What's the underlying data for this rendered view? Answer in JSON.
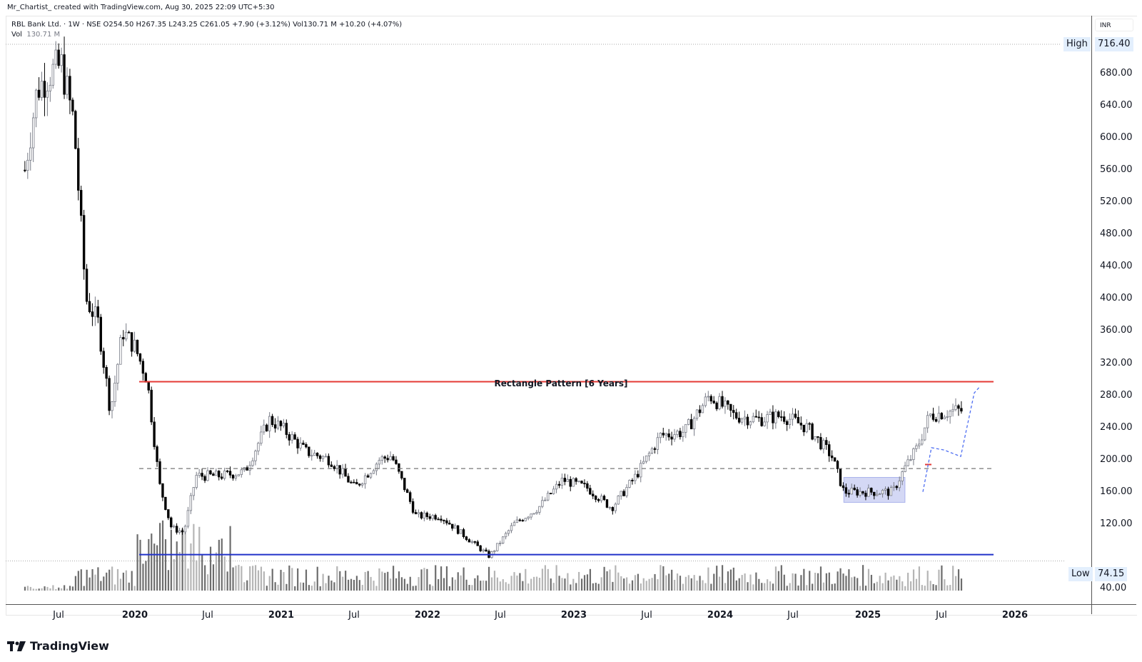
{
  "attribution": "Mr_Chartist_ created with TradingView.com, Aug 30, 2025 22:09 UTC+5:30",
  "legend": {
    "line1": "RBL Bank Ltd. · 1W · NSE  O254.50  H267.35  L243.25  C261.05  +7.90 (+3.12%)  Vol130.71 M  +10.20 (+4.07%)",
    "vol_label": "Vol",
    "vol_value": "130.71 M"
  },
  "price_axis": {
    "currency": "INR",
    "high_label": "High",
    "high_value": "716.40",
    "low_label": "Low",
    "low_value": "74.15"
  },
  "branding": {
    "logo_text": "TradingView"
  },
  "colors": {
    "up_candle": "#787b86",
    "down_candle": "#000000",
    "resistance_line": "#e53935",
    "support_line": "#2132c9",
    "breakout_dashed": "#777777",
    "base_box": "#c5cbf2",
    "projection": "#4e6ef2"
  },
  "chart_data": {
    "type": "candlestick",
    "title": "RBL Bank Ltd. · 1W · NSE",
    "xlabel": "",
    "ylabel": "INR",
    "ylim": [
      40,
      716.4
    ],
    "grid": false,
    "y_ticks": [
      680,
      640,
      600,
      560,
      520,
      480,
      440,
      400,
      360,
      320,
      280,
      240,
      200,
      160,
      120,
      80,
      40
    ],
    "x_ticks": [
      "Jul",
      "2020",
      "Jul",
      "2021",
      "Jul",
      "2022",
      "Jul",
      "2023",
      "Jul",
      "2024",
      "Jul",
      "2025",
      "Jul",
      "2026"
    ],
    "last_bar": {
      "open": 254.5,
      "high": 267.35,
      "low": 243.25,
      "close": 261.05,
      "change": 7.9,
      "change_pct": 3.12,
      "volume": "130.71M",
      "volume_change": "+10.20 (+4.07%)"
    },
    "extremes": {
      "high": 716.4,
      "low": 74.15
    },
    "annotations": [
      {
        "type": "hline",
        "label": "Rectangle Pattern [6 Years]",
        "price": 297,
        "color": "#e53935"
      },
      {
        "type": "hline",
        "price": 82,
        "color": "#2132c9"
      },
      {
        "type": "hline_dashed",
        "price": 189,
        "color": "#777777"
      },
      {
        "type": "box",
        "price_range": [
          147,
          178
        ],
        "period": "Nov 2024 - Mar 2025"
      }
    ],
    "waypoints": [
      {
        "date": "2019-04",
        "price": 560
      },
      {
        "date": "2019-05",
        "price": 660
      },
      {
        "date": "2019-06",
        "price": 680
      },
      {
        "date": "2019-07",
        "price": 690
      },
      {
        "date": "2019-08",
        "price": 620
      },
      {
        "date": "2019-09",
        "price": 400
      },
      {
        "date": "2019-10",
        "price": 370
      },
      {
        "date": "2019-11",
        "price": 260
      },
      {
        "date": "2019-12",
        "price": 360
      },
      {
        "date": "2020-01",
        "price": 340
      },
      {
        "date": "2020-02",
        "price": 300
      },
      {
        "date": "2020-03",
        "price": 170
      },
      {
        "date": "2020-04",
        "price": 115
      },
      {
        "date": "2020-05",
        "price": 110
      },
      {
        "date": "2020-06",
        "price": 180
      },
      {
        "date": "2020-08",
        "price": 180
      },
      {
        "date": "2020-10",
        "price": 185
      },
      {
        "date": "2020-12",
        "price": 250
      },
      {
        "date": "2021-01",
        "price": 240
      },
      {
        "date": "2021-03",
        "price": 210
      },
      {
        "date": "2021-05",
        "price": 200
      },
      {
        "date": "2021-07",
        "price": 165
      },
      {
        "date": "2021-09",
        "price": 200
      },
      {
        "date": "2021-10",
        "price": 205
      },
      {
        "date": "2021-12",
        "price": 130
      },
      {
        "date": "2022-02",
        "price": 130
      },
      {
        "date": "2022-04",
        "price": 105
      },
      {
        "date": "2022-06",
        "price": 80
      },
      {
        "date": "2022-08",
        "price": 120
      },
      {
        "date": "2022-10",
        "price": 140
      },
      {
        "date": "2022-12",
        "price": 175
      },
      {
        "date": "2023-02",
        "price": 165
      },
      {
        "date": "2023-04",
        "price": 140
      },
      {
        "date": "2023-06",
        "price": 180
      },
      {
        "date": "2023-08",
        "price": 230
      },
      {
        "date": "2023-10",
        "price": 235
      },
      {
        "date": "2023-12",
        "price": 280
      },
      {
        "date": "2024-02",
        "price": 255
      },
      {
        "date": "2024-04",
        "price": 250
      },
      {
        "date": "2024-06",
        "price": 255
      },
      {
        "date": "2024-08",
        "price": 240
      },
      {
        "date": "2024-10",
        "price": 205
      },
      {
        "date": "2024-11",
        "price": 160
      },
      {
        "date": "2025-01",
        "price": 160
      },
      {
        "date": "2025-03",
        "price": 160
      },
      {
        "date": "2025-04",
        "price": 190
      },
      {
        "date": "2025-05",
        "price": 215
      },
      {
        "date": "2025-06",
        "price": 255
      },
      {
        "date": "2025-08",
        "price": 261
      }
    ]
  }
}
